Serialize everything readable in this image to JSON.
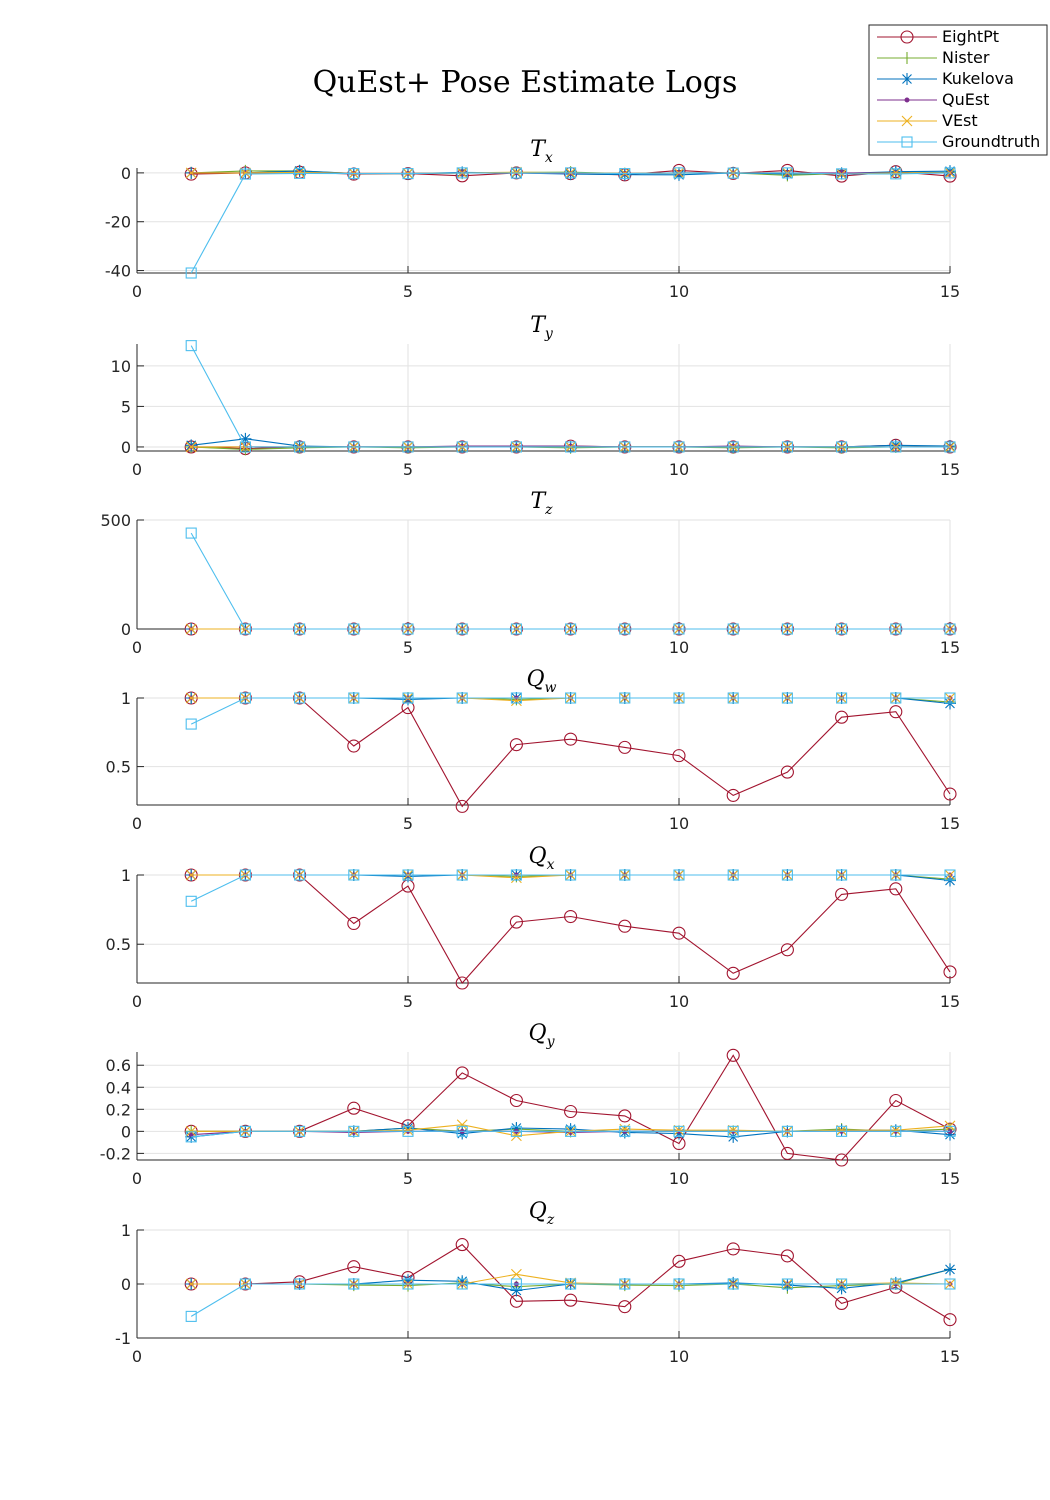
{
  "figure_title": "QuEst+ Pose Estimate Logs",
  "legend": {
    "placement": "top-right",
    "entries": [
      {
        "name": "EightPt",
        "color": "#A2142F",
        "marker": "circle"
      },
      {
        "name": "Nister",
        "color": "#77AC30",
        "marker": "plus"
      },
      {
        "name": "Kukelova",
        "color": "#0072BD",
        "marker": "asterisk"
      },
      {
        "name": "QuEst",
        "color": "#7E2F8E",
        "marker": "dot"
      },
      {
        "name": "VEst",
        "color": "#EDB120",
        "marker": "x"
      },
      {
        "name": "Groundtruth",
        "color": "#4DBEEE",
        "marker": "square"
      }
    ]
  },
  "chart_data": [
    {
      "type": "line",
      "title": "T",
      "title_sub": "x",
      "xlim": [
        0,
        15
      ],
      "ylim": [
        -41,
        2
      ],
      "xticks": [
        0,
        5,
        10,
        15
      ],
      "yticks": [
        0,
        -20,
        -40
      ],
      "grid": true,
      "x": [
        1,
        2,
        3,
        4,
        5,
        6,
        7,
        8,
        9,
        10,
        11,
        12,
        13,
        14,
        15
      ],
      "series": [
        {
          "name": "EightPt",
          "values": [
            -0.5,
            0,
            0.3,
            -0.5,
            -0.3,
            -1.2,
            0,
            -0.3,
            -0.8,
            1,
            -0.2,
            1,
            -1.3,
            0.5,
            -1.3
          ]
        },
        {
          "name": "Nister",
          "values": [
            0,
            0.8,
            0.8,
            -0.3,
            -0.3,
            -0.1,
            0.2,
            0.3,
            -0.3,
            -0.1,
            0,
            -1,
            -0.3,
            0,
            0.2
          ]
        },
        {
          "name": "Kukelova",
          "values": [
            0,
            0,
            0.8,
            -0.2,
            -0.3,
            0.2,
            0,
            -0.5,
            -0.7,
            -0.8,
            0,
            -0.4,
            -0.2,
            0.5,
            0.7
          ]
        },
        {
          "name": "QuEst",
          "values": [
            0,
            0,
            0.2,
            -0.2,
            -0.2,
            0,
            0,
            -0.2,
            -0.2,
            0,
            0,
            0,
            0,
            0,
            0
          ]
        },
        {
          "name": "VEst",
          "values": [
            0,
            0,
            0.2,
            -0.2,
            -0.2,
            0,
            0.3,
            0,
            -0.2,
            0,
            0,
            0,
            -0.5,
            0,
            0
          ]
        },
        {
          "name": "Groundtruth",
          "values": [
            -41,
            -0.5,
            -0.2,
            -0.3,
            -0.3,
            0,
            -0.1,
            0,
            -0.3,
            0,
            -0.1,
            0,
            -0.4,
            -0.4,
            0
          ]
        }
      ]
    },
    {
      "type": "line",
      "title": "T",
      "title_sub": "y",
      "xlim": [
        0,
        15
      ],
      "ylim": [
        -0.5,
        12.7
      ],
      "xticks": [
        0,
        5,
        10,
        15
      ],
      "yticks": [
        10,
        5,
        0
      ],
      "grid": true,
      "x": [
        1,
        2,
        3,
        4,
        5,
        6,
        7,
        8,
        9,
        10,
        11,
        12,
        13,
        14,
        15
      ],
      "series": [
        {
          "name": "EightPt",
          "values": [
            0,
            -0.2,
            0,
            0,
            0,
            0,
            0,
            0.1,
            0,
            0,
            0,
            0,
            0,
            0.2,
            0
          ]
        },
        {
          "name": "Nister",
          "values": [
            0,
            -0.3,
            -0.1,
            0,
            -0.1,
            0,
            0,
            -0.1,
            0,
            0,
            -0.1,
            0,
            -0.1,
            0,
            0
          ]
        },
        {
          "name": "Kukelova",
          "values": [
            0.2,
            1,
            0.1,
            0,
            0,
            0,
            0,
            0,
            0,
            0,
            0,
            0,
            0,
            0.2,
            0.1
          ]
        },
        {
          "name": "QuEst",
          "values": [
            0,
            0,
            0,
            0,
            0,
            0.1,
            0.1,
            0.1,
            0,
            0,
            0.1,
            0,
            0,
            0,
            0
          ]
        },
        {
          "name": "VEst",
          "values": [
            0,
            0,
            0,
            0,
            0,
            0,
            0,
            0,
            0,
            0,
            0,
            0,
            0,
            0,
            0
          ]
        },
        {
          "name": "Groundtruth",
          "values": [
            12.5,
            0,
            0,
            0,
            0,
            0,
            0,
            0,
            0,
            0,
            0,
            0,
            0,
            0,
            0
          ]
        }
      ]
    },
    {
      "type": "line",
      "title": "T",
      "title_sub": "z",
      "xlim": [
        0,
        15
      ],
      "ylim": [
        0,
        500
      ],
      "xticks": [
        0,
        5,
        10,
        15
      ],
      "yticks": [
        500,
        0
      ],
      "grid": true,
      "x": [
        1,
        2,
        3,
        4,
        5,
        6,
        7,
        8,
        9,
        10,
        11,
        12,
        13,
        14,
        15
      ],
      "series": [
        {
          "name": "EightPt",
          "values": [
            0,
            0,
            0,
            0,
            0,
            0,
            0,
            0,
            0,
            0,
            0,
            0,
            0,
            0,
            0
          ]
        },
        {
          "name": "Nister",
          "values": [
            0,
            0,
            0,
            0,
            0,
            0,
            0,
            0,
            0,
            0,
            0,
            0,
            0,
            0,
            0
          ]
        },
        {
          "name": "Kukelova",
          "values": [
            0,
            0,
            0,
            0,
            0,
            0,
            0,
            0,
            0,
            0,
            0,
            0,
            0,
            0,
            0
          ]
        },
        {
          "name": "QuEst",
          "values": [
            0,
            0,
            0,
            0,
            0,
            0,
            0,
            0,
            0,
            0,
            0,
            0,
            0,
            0,
            0
          ]
        },
        {
          "name": "VEst",
          "values": [
            0,
            0,
            0,
            0,
            0,
            0,
            0,
            0,
            0,
            0,
            0,
            0,
            0,
            0,
            0
          ]
        },
        {
          "name": "Groundtruth",
          "values": [
            440,
            0,
            0,
            0,
            0,
            0,
            0,
            0,
            0,
            0,
            0,
            0,
            0,
            0,
            0
          ]
        }
      ]
    },
    {
      "type": "line",
      "title": "Q",
      "title_sub": "w",
      "xlim": [
        0,
        15
      ],
      "ylim": [
        0.22,
        1.0
      ],
      "xticks": [
        0,
        5,
        10,
        15
      ],
      "yticks": [
        1,
        0.5
      ],
      "grid": true,
      "x": [
        1,
        2,
        3,
        4,
        5,
        6,
        7,
        8,
        9,
        10,
        11,
        12,
        13,
        14,
        15
      ],
      "series": [
        {
          "name": "EightPt",
          "values": [
            1.0,
            1.0,
            1.0,
            0.65,
            0.93,
            0.21,
            0.66,
            0.7,
            0.64,
            0.58,
            0.29,
            0.46,
            0.86,
            0.9,
            0.3
          ]
        },
        {
          "name": "Nister",
          "values": [
            1.0,
            1.0,
            1.0,
            1.0,
            1.0,
            1.0,
            0.99,
            1.0,
            1.0,
            1.0,
            1.0,
            1.0,
            1.0,
            1.0,
            0.97
          ]
        },
        {
          "name": "Kukelova",
          "values": [
            1.0,
            1.0,
            1.0,
            1.0,
            0.99,
            1.0,
            1.0,
            1.0,
            1.0,
            1.0,
            1.0,
            1.0,
            1.0,
            1.0,
            0.96
          ]
        },
        {
          "name": "QuEst",
          "values": [
            1.0,
            1.0,
            1.0,
            1.0,
            1.0,
            1.0,
            1.0,
            1.0,
            1.0,
            1.0,
            1.0,
            1.0,
            1.0,
            1.0,
            1.0
          ]
        },
        {
          "name": "VEst",
          "values": [
            1.0,
            1.0,
            1.0,
            1.0,
            1.0,
            1.0,
            0.98,
            1.0,
            1.0,
            1.0,
            1.0,
            1.0,
            1.0,
            1.0,
            1.0
          ]
        },
        {
          "name": "Groundtruth",
          "values": [
            0.81,
            1.0,
            1.0,
            1.0,
            1.0,
            1.0,
            1.0,
            1.0,
            1.0,
            1.0,
            1.0,
            1.0,
            1.0,
            1.0,
            1.0
          ]
        }
      ]
    },
    {
      "type": "line",
      "title": "Q",
      "title_sub": "x",
      "xlim": [
        0,
        15
      ],
      "ylim": [
        0.22,
        1.0
      ],
      "xticks": [
        0,
        5,
        10,
        15
      ],
      "yticks": [
        1,
        0.5
      ],
      "grid": true,
      "x": [
        1,
        2,
        3,
        4,
        5,
        6,
        7,
        8,
        9,
        10,
        11,
        12,
        13,
        14,
        15
      ],
      "series": [
        {
          "name": "EightPt",
          "values": [
            1.0,
            1.0,
            1.0,
            0.65,
            0.92,
            0.22,
            0.66,
            0.7,
            0.63,
            0.58,
            0.29,
            0.46,
            0.86,
            0.9,
            0.3
          ]
        },
        {
          "name": "Nister",
          "values": [
            1.0,
            1.0,
            1.0,
            1.0,
            1.0,
            1.0,
            0.99,
            1.0,
            1.0,
            1.0,
            1.0,
            1.0,
            1.0,
            1.0,
            0.97
          ]
        },
        {
          "name": "Kukelova",
          "values": [
            1.0,
            1.0,
            1.0,
            1.0,
            0.99,
            1.0,
            1.0,
            1.0,
            1.0,
            1.0,
            1.0,
            1.0,
            1.0,
            1.0,
            0.96
          ]
        },
        {
          "name": "QuEst",
          "values": [
            1.0,
            1.0,
            1.0,
            1.0,
            1.0,
            1.0,
            1.0,
            1.0,
            1.0,
            1.0,
            1.0,
            1.0,
            1.0,
            1.0,
            1.0
          ]
        },
        {
          "name": "VEst",
          "values": [
            1.0,
            1.0,
            1.0,
            1.0,
            1.0,
            1.0,
            0.98,
            1.0,
            1.0,
            1.0,
            1.0,
            1.0,
            1.0,
            1.0,
            1.0
          ]
        },
        {
          "name": "Groundtruth",
          "values": [
            0.81,
            1.0,
            1.0,
            1.0,
            1.0,
            1.0,
            1.0,
            1.0,
            1.0,
            1.0,
            1.0,
            1.0,
            1.0,
            1.0,
            1.0
          ]
        }
      ]
    },
    {
      "type": "line",
      "title": "Q",
      "title_sub": "y",
      "xlim": [
        0,
        15
      ],
      "ylim": [
        -0.26,
        0.72
      ],
      "xticks": [
        0,
        5,
        10,
        15
      ],
      "yticks": [
        0.6,
        0.4,
        0.2,
        0,
        -0.2
      ],
      "grid": true,
      "x": [
        1,
        2,
        3,
        4,
        5,
        6,
        7,
        8,
        9,
        10,
        11,
        12,
        13,
        14,
        15
      ],
      "series": [
        {
          "name": "EightPt",
          "values": [
            0,
            0,
            0,
            0.21,
            0.05,
            0.53,
            0.28,
            0.18,
            0.14,
            -0.11,
            0.69,
            -0.2,
            -0.26,
            0.28,
            0.02
          ]
        },
        {
          "name": "Nister",
          "values": [
            0,
            0,
            0,
            0,
            0.03,
            0,
            0.02,
            0,
            0,
            0,
            0,
            0,
            0.02,
            0,
            0.02
          ]
        },
        {
          "name": "Kukelova",
          "values": [
            -0.05,
            0,
            0,
            0,
            0.03,
            -0.02,
            0.03,
            0.02,
            -0.01,
            -0.02,
            -0.05,
            0,
            0.01,
            0.01,
            -0.03
          ]
        },
        {
          "name": "QuEst",
          "values": [
            -0.03,
            0,
            0,
            -0.01,
            0,
            0,
            0,
            -0.01,
            0,
            0,
            0,
            0,
            0,
            0,
            0
          ]
        },
        {
          "name": "VEst",
          "values": [
            0,
            0,
            0,
            0,
            0.01,
            0.06,
            -0.04,
            0,
            0.02,
            0.01,
            0.01,
            0,
            0.01,
            0.01,
            0.05
          ]
        },
        {
          "name": "Groundtruth",
          "values": [
            -0.05,
            0,
            0,
            0,
            0,
            0,
            0,
            0,
            0,
            0,
            0,
            0,
            0,
            0,
            0
          ]
        }
      ]
    },
    {
      "type": "line",
      "title": "Q",
      "title_sub": "z",
      "xlim": [
        0,
        15
      ],
      "ylim": [
        -1,
        1
      ],
      "xticks": [
        0,
        5,
        10,
        15
      ],
      "yticks": [
        1,
        0,
        -1
      ],
      "grid": true,
      "x": [
        1,
        2,
        3,
        4,
        5,
        6,
        7,
        8,
        9,
        10,
        11,
        12,
        13,
        14,
        15
      ],
      "series": [
        {
          "name": "EightPt",
          "values": [
            0,
            0,
            0.04,
            0.32,
            0.12,
            0.73,
            -0.32,
            -0.3,
            -0.42,
            0.42,
            0.65,
            0.52,
            -0.36,
            -0.06,
            -0.66
          ]
        },
        {
          "name": "Nister",
          "values": [
            0,
            0,
            0,
            -0.02,
            -0.03,
            0.02,
            -0.05,
            0,
            -0.02,
            -0.03,
            0,
            -0.07,
            -0.03,
            0,
            0.27
          ]
        },
        {
          "name": "Kukelova",
          "values": [
            0,
            0,
            0,
            0,
            0.07,
            0.05,
            -0.12,
            0,
            0,
            0,
            0.02,
            -0.02,
            -0.08,
            0.02,
            0.27
          ]
        },
        {
          "name": "QuEst",
          "values": [
            0,
            0,
            0,
            0,
            0,
            0,
            0,
            0,
            0,
            0,
            0,
            0,
            0,
            0,
            0
          ]
        },
        {
          "name": "VEst",
          "values": [
            0,
            0,
            0,
            0,
            0,
            0,
            0.18,
            0.02,
            0,
            0,
            0,
            0,
            0,
            0.02,
            0
          ]
        },
        {
          "name": "Groundtruth",
          "values": [
            -0.6,
            0,
            0,
            0,
            0,
            0,
            0,
            0,
            0,
            0,
            0,
            0,
            0,
            0,
            0
          ]
        }
      ]
    }
  ]
}
